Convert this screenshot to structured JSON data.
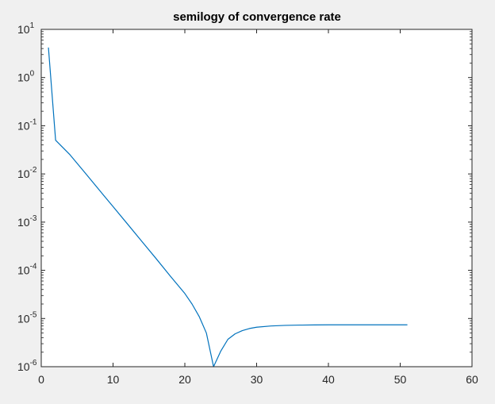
{
  "chart_data": {
    "type": "line",
    "title": "semilogy of convergence rate",
    "xlabel": "",
    "ylabel": "",
    "xscale": "linear",
    "yscale": "log",
    "xlim": [
      0,
      60
    ],
    "ylim": [
      1e-06,
      10
    ],
    "x_ticks": [
      0,
      10,
      20,
      30,
      40,
      50,
      60
    ],
    "x_tick_labels": [
      "0",
      "10",
      "20",
      "30",
      "40",
      "50",
      "60"
    ],
    "y_ticks": [
      1e-06,
      1e-05,
      0.0001,
      0.001,
      0.01,
      0.1,
      1,
      10
    ],
    "y_tick_labels": [
      {
        "base": "10",
        "exp": "-6"
      },
      {
        "base": "10",
        "exp": "-5"
      },
      {
        "base": "10",
        "exp": "-4"
      },
      {
        "base": "10",
        "exp": "-3"
      },
      {
        "base": "10",
        "exp": "-2"
      },
      {
        "base": "10",
        "exp": "-1"
      },
      {
        "base": "10",
        "exp": "0"
      },
      {
        "base": "10",
        "exp": "1"
      }
    ],
    "grid": false,
    "legend": "none",
    "series": [
      {
        "color": "#0072bd",
        "x": [
          1,
          2,
          4,
          6,
          8,
          10,
          12,
          14,
          16,
          18,
          20,
          21,
          22,
          23,
          24,
          25,
          26,
          27,
          28,
          29,
          30,
          32,
          34,
          36,
          38,
          40,
          45,
          51
        ],
        "y": [
          4.2,
          0.05,
          0.025,
          0.011,
          0.0048,
          0.0021,
          0.00092,
          0.0004,
          0.000175,
          7.5e-05,
          3.3e-05,
          2e-05,
          1.1e-05,
          5e-06,
          1e-06,
          2.1e-06,
          3.7e-06,
          4.8e-06,
          5.6e-06,
          6.2e-06,
          6.6e-06,
          7e-06,
          7.2e-06,
          7.3e-06,
          7.35e-06,
          7.4e-06,
          7.4e-06,
          7.4e-06
        ]
      }
    ]
  },
  "colors": {
    "figure_background": "#f0f0f0",
    "axes_background": "#ffffff",
    "axis_color": "#262626",
    "line_color": "#0072bd"
  }
}
